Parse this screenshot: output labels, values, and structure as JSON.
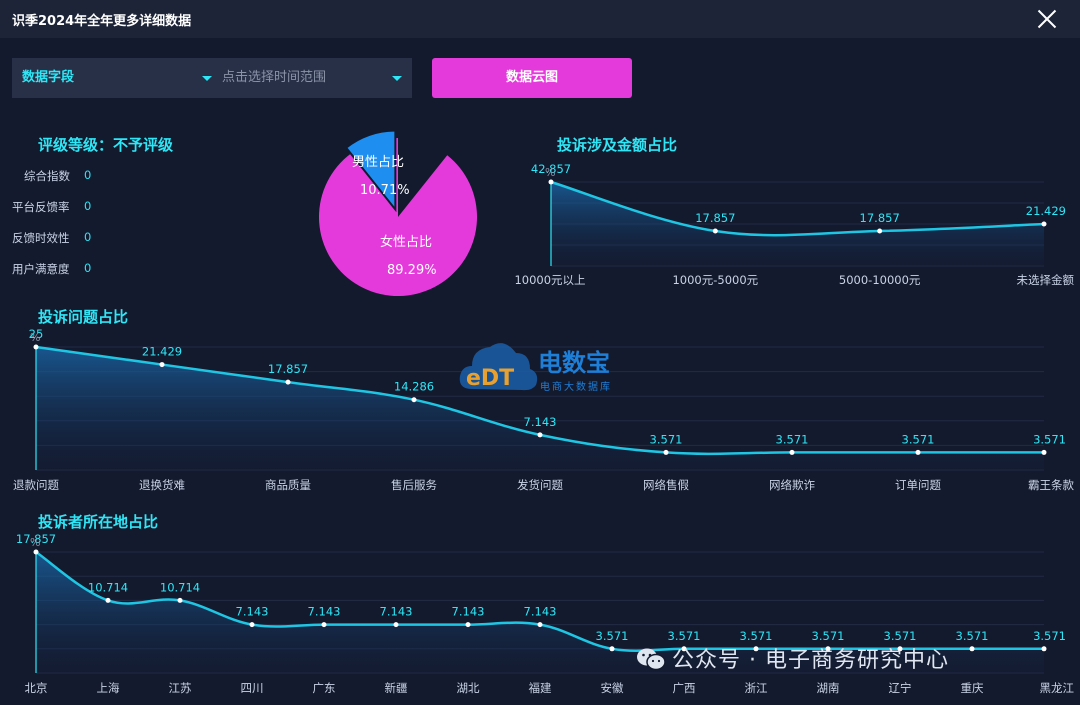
{
  "window": {
    "title": "识季2024年全年更多详细数据"
  },
  "filters": {
    "field_label": "数据字段",
    "time_placeholder": "点击选择时间范围"
  },
  "toolbar": {
    "cloud_button": "数据云图"
  },
  "rating": {
    "title": "评级等级：不予评级",
    "metrics": [
      {
        "label": "综合指数",
        "value": "0"
      },
      {
        "label": "平台反馈率",
        "value": "0"
      },
      {
        "label": "反馈时效性",
        "value": "0"
      },
      {
        "label": "用户满意度",
        "value": "0"
      }
    ]
  },
  "gender_pie": {
    "chart_data": {
      "type": "pie",
      "slices": [
        {
          "name": "男性占比",
          "value": 10.71,
          "label": "10.71%",
          "color": "#1e8ff0"
        },
        {
          "name": "女性占比",
          "value": 89.29,
          "label": "89.29%",
          "color": "#e53adb"
        }
      ]
    }
  },
  "amount_chart": {
    "title": "投诉涉及金额占比",
    "unit": "%",
    "chart_data": {
      "type": "area",
      "categories": [
        "10000元以上",
        "1000元-5000元",
        "5000-10000元",
        "未选择金额"
      ],
      "values": [
        42.857,
        17.857,
        17.857,
        21.429
      ],
      "labels": [
        "42.857",
        "17.857",
        "17.857",
        "21.429"
      ]
    }
  },
  "issue_chart": {
    "title": "投诉问题占比",
    "unit": "%",
    "chart_data": {
      "type": "area",
      "categories": [
        "退款问题",
        "退换货难",
        "商品质量",
        "售后服务",
        "发货问题",
        "网络售假",
        "网络欺诈",
        "订单问题",
        "霸王条款"
      ],
      "values": [
        25,
        21.429,
        17.857,
        14.286,
        7.143,
        3.571,
        3.571,
        3.571,
        3.571
      ],
      "labels": [
        "25",
        "21.429",
        "17.857",
        "14.286",
        "7.143",
        "3.571",
        "3.571",
        "3.571",
        "3.571"
      ]
    }
  },
  "region_chart": {
    "title": "投诉者所在地占比",
    "unit": "%",
    "chart_data": {
      "type": "area",
      "categories": [
        "北京",
        "上海",
        "江苏",
        "四川",
        "广东",
        "新疆",
        "湖北",
        "福建",
        "安徽",
        "广西",
        "浙江",
        "湖南",
        "辽宁",
        "重庆",
        "黑龙江"
      ],
      "values": [
        17.857,
        10.714,
        10.714,
        7.143,
        7.143,
        7.143,
        7.143,
        7.143,
        3.571,
        3.571,
        3.571,
        3.571,
        3.571,
        3.571,
        3.571
      ],
      "labels": [
        "17.857",
        "10.714",
        "10.714",
        "7.143",
        "7.143",
        "7.143",
        "7.143",
        "7.143",
        "3.571",
        "3.571",
        "3.571",
        "3.571",
        "3.571",
        "3.571",
        "3.571"
      ]
    }
  },
  "watermark": {
    "brand": "电数宝",
    "sub": "电商大数据库",
    "logo": "eDT"
  },
  "wechat_watermark": {
    "text": "公众号 · 电子商务研究中心",
    "icon": "wechat-icon"
  }
}
